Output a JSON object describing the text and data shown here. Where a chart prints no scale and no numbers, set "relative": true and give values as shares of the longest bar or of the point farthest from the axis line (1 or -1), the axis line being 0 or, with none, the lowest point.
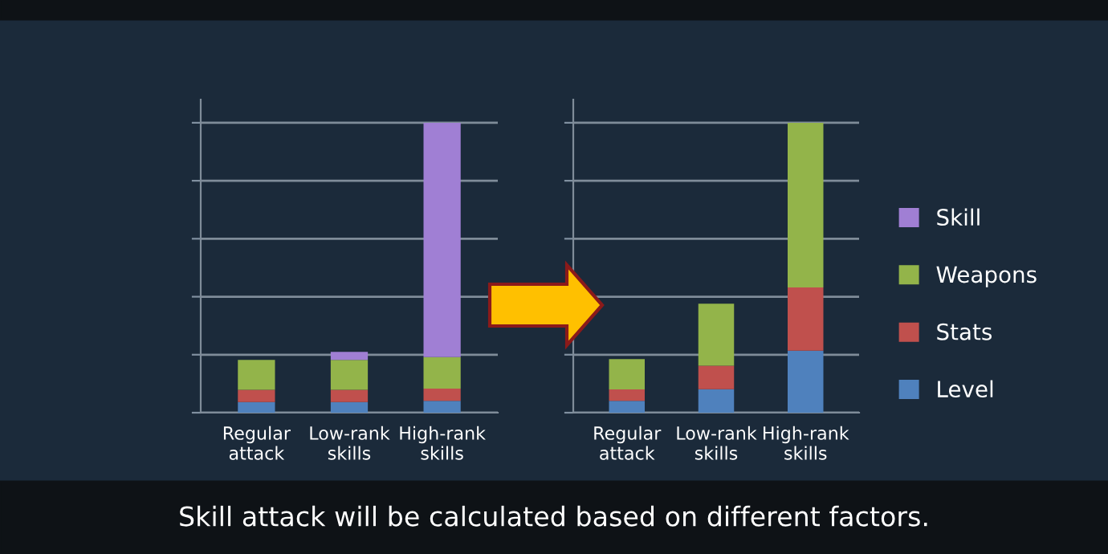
{
  "chart_data": [
    {
      "type": "bar",
      "stacked": true,
      "relative": true,
      "grid": "y",
      "legend": "right",
      "categories": [
        "Regular\nattack",
        "Low-rank\nskills",
        "High-rank\nskills"
      ],
      "series": [
        {
          "name": "Level",
          "color": "#4f81bd",
          "values": [
            0.037,
            0.037,
            0.041
          ]
        },
        {
          "name": "Stats",
          "color": "#c0504d",
          "values": [
            0.042,
            0.042,
            0.042
          ]
        },
        {
          "name": "Weapons",
          "color": "#93b44a",
          "values": [
            0.103,
            0.103,
            0.109
          ]
        },
        {
          "name": "Skill",
          "color": "#a07fd4",
          "values": [
            null,
            0.028,
            0.808
          ]
        }
      ],
      "annotations": [
        "Skill attack will be calculated based on different factors."
      ]
    },
    {
      "type": "bar",
      "stacked": true,
      "relative": true,
      "grid": "y",
      "categories": [
        "Regular\nattack",
        "Low-rank\nskills",
        "High-rank\nskills"
      ],
      "series": [
        {
          "color": "#4f81bd",
          "values": [
            0.041,
            0.081,
            0.214
          ]
        },
        {
          "color": "#c0504d",
          "values": [
            0.039,
            0.081,
            0.218
          ]
        },
        {
          "color": "#93b44a",
          "values": [
            0.105,
            0.214,
            0.568
          ]
        }
      ]
    }
  ]
}
